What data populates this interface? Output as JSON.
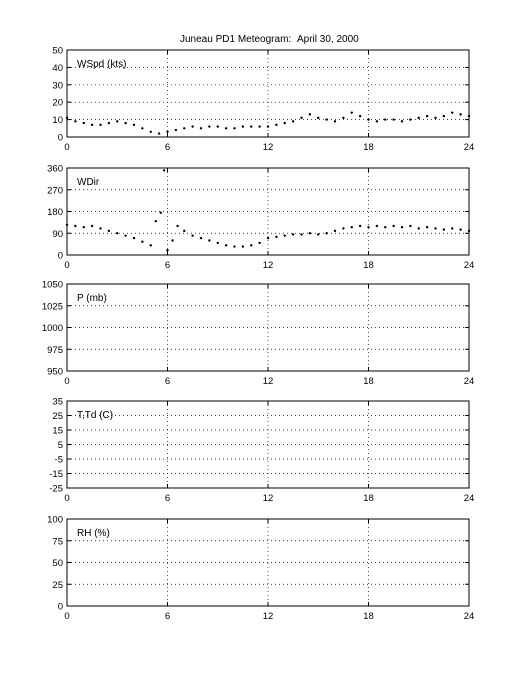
{
  "page": {
    "title": "Juneau PD1 Meteogram:",
    "date": "April 30, 2000"
  },
  "chart_data": [
    {
      "type": "scatter",
      "label": "WSpd (kts)",
      "xlim": [
        0,
        24
      ],
      "ylim": [
        0,
        50
      ],
      "xticks": [
        0,
        6,
        12,
        18,
        24
      ],
      "yticks": [
        0,
        10,
        20,
        30,
        40,
        50
      ],
      "grid": true,
      "marker_color": "#000000",
      "series": [
        {
          "x": [
            0,
            0.5,
            1,
            1.5,
            2,
            2.5,
            3,
            3.5,
            4,
            4.5,
            5,
            5.5,
            6,
            6.5,
            7,
            7.5,
            8,
            8.5,
            9,
            9.5,
            10,
            10.5,
            11,
            11.5,
            12,
            12.5,
            13,
            13.5,
            14,
            14.5,
            15,
            15.5,
            16,
            16.5,
            17,
            17.5,
            18,
            18.5,
            19,
            19.5,
            20,
            20.5,
            21,
            21.5,
            22,
            22.5,
            23,
            23.5,
            24
          ],
          "y": [
            11,
            9,
            8,
            7,
            7,
            8,
            9,
            8,
            7,
            5,
            3,
            2,
            3,
            4,
            5,
            6,
            5,
            6,
            6,
            5,
            5,
            6,
            6,
            6,
            6,
            7,
            8,
            9,
            11,
            13,
            11,
            10,
            9,
            11,
            14,
            12,
            10,
            9,
            10,
            10,
            9,
            10,
            11,
            12,
            11,
            12,
            14,
            13,
            12
          ]
        }
      ]
    },
    {
      "type": "scatter",
      "label": "WDir",
      "xlim": [
        0,
        24
      ],
      "ylim": [
        0,
        360
      ],
      "xticks": [
        0,
        6,
        12,
        18,
        24
      ],
      "yticks": [
        0,
        90,
        180,
        270,
        360
      ],
      "grid": true,
      "marker_color": "#000000",
      "series": [
        {
          "x": [
            0,
            0.5,
            1,
            1.5,
            2,
            2.5,
            3,
            3.5,
            4,
            4.5,
            5,
            5.3,
            5.6,
            5.8,
            6,
            6.3,
            6.6,
            7,
            7.5,
            8,
            8.5,
            9,
            9.5,
            10,
            10.5,
            11,
            11.5,
            12,
            12.5,
            13,
            13.5,
            14,
            14.5,
            15,
            15.5,
            16,
            16.5,
            17,
            17.5,
            18,
            18.5,
            19,
            19.5,
            20,
            20.5,
            21,
            21.5,
            22,
            22.5,
            23,
            23.5,
            24
          ],
          "y": [
            125,
            120,
            115,
            120,
            110,
            100,
            90,
            80,
            70,
            55,
            40,
            140,
            175,
            350,
            20,
            60,
            120,
            100,
            80,
            70,
            60,
            50,
            40,
            35,
            35,
            40,
            50,
            70,
            75,
            80,
            85,
            85,
            90,
            85,
            90,
            100,
            110,
            115,
            120,
            115,
            120,
            115,
            120,
            115,
            120,
            110,
            115,
            110,
            105,
            110,
            105,
            100
          ]
        }
      ]
    },
    {
      "type": "scatter",
      "label": "P (mb)",
      "xlim": [
        0,
        24
      ],
      "ylim": [
        950,
        1050
      ],
      "xticks": [
        0,
        6,
        12,
        18,
        24
      ],
      "yticks": [
        950,
        975,
        1000,
        1025,
        1050
      ],
      "grid": true,
      "series": []
    },
    {
      "type": "scatter",
      "label": "T,Td (C)",
      "xlim": [
        0,
        24
      ],
      "ylim": [
        -25,
        35
      ],
      "xticks": [
        0,
        6,
        12,
        18,
        24
      ],
      "yticks": [
        -25,
        -15,
        -5,
        5,
        15,
        25,
        35
      ],
      "minor_grid_step": 10,
      "grid": true,
      "series": []
    },
    {
      "type": "scatter",
      "label": "RH (%)",
      "xlim": [
        0,
        24
      ],
      "ylim": [
        0,
        100
      ],
      "xticks": [
        0,
        6,
        12,
        18,
        24
      ],
      "yticks": [
        0,
        25,
        50,
        75,
        100
      ],
      "minor_grid_step": 25,
      "grid": true,
      "series": []
    }
  ]
}
